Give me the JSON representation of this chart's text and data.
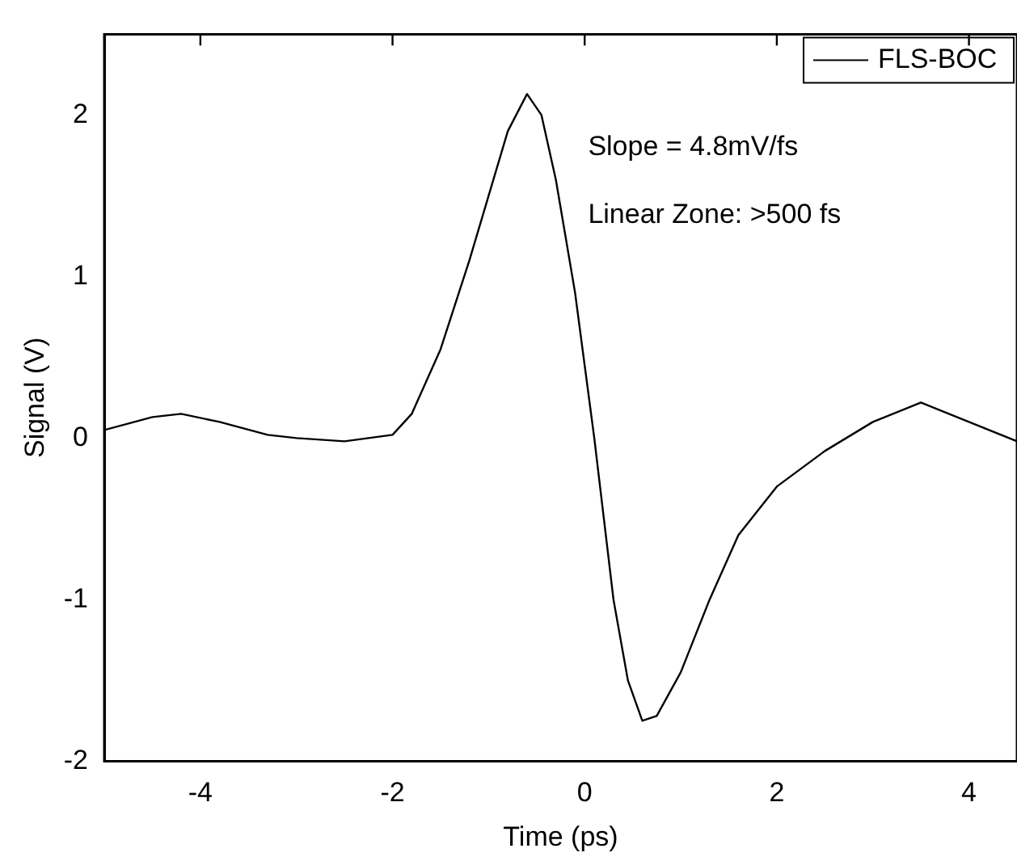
{
  "chart_data": {
    "type": "line",
    "xlabel": "Time (ps)",
    "ylabel": "Signal (V)",
    "xlim": [
      -5,
      4.5
    ],
    "ylim": [
      -2,
      2.5
    ],
    "xticks": [
      -4,
      -2,
      0,
      2,
      4
    ],
    "yticks": [
      -2,
      -1,
      0,
      1,
      2
    ],
    "grid": false,
    "legend": "top right",
    "marker": "none",
    "line_style": "solid",
    "annotations": [
      "Slope = 4.8mV/fs",
      "Linear Zone: >500 fs"
    ],
    "series": [
      {
        "name": "FLS-BOC",
        "color": "#000000",
        "x": [
          -5,
          -4.5,
          -4.2,
          -3.8,
          -3.3,
          -3,
          -2.5,
          -2,
          -1.8,
          -1.5,
          -1.2,
          -1,
          -0.8,
          -0.6,
          -0.45,
          -0.3,
          -0.1,
          0,
          0.1,
          0.2,
          0.3,
          0.45,
          0.6,
          0.75,
          1,
          1.3,
          1.6,
          2,
          2.5,
          3,
          3.5,
          4,
          4.5
        ],
        "values": [
          0.05,
          0.13,
          0.15,
          0.1,
          0.02,
          0,
          -0.02,
          0.02,
          0.15,
          0.55,
          1.1,
          1.5,
          1.9,
          2.13,
          2,
          1.6,
          0.9,
          0.45,
          0,
          -0.5,
          -1,
          -1.5,
          -1.75,
          -1.72,
          -1.45,
          -1,
          -0.6,
          -0.3,
          -0.08,
          0.1,
          0.22,
          0.1,
          -0.02
        ]
      }
    ]
  }
}
